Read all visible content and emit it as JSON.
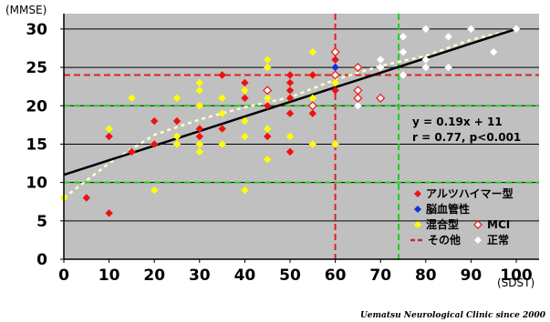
{
  "chart_data": {
    "type": "scatter",
    "ylabel": "(MMSE)",
    "xlabel": "(SDST)",
    "xlim": [
      0,
      100
    ],
    "ylim": [
      0,
      32
    ],
    "x_ticks": [
      0,
      10,
      20,
      30,
      40,
      50,
      60,
      70,
      80,
      90,
      100
    ],
    "y_ticks": [
      0,
      5,
      10,
      15,
      20,
      25,
      30
    ],
    "grid": "horizontal",
    "background": "#c0c0c0",
    "regression_line": {
      "slope": 0.19,
      "intercept": 11,
      "color": "#000000"
    },
    "trend_curve": [
      [
        0,
        8
      ],
      [
        10,
        12.5
      ],
      [
        20,
        16.2
      ],
      [
        30,
        18.2
      ],
      [
        40,
        19.8
      ],
      [
        50,
        21.1
      ],
      [
        60,
        23.4
      ],
      [
        70,
        25.2
      ],
      [
        80,
        26.5
      ],
      [
        90,
        28.6
      ],
      [
        100,
        30
      ]
    ],
    "trend_curve_color": "#ffffcc",
    "annotation_lines": [
      "y = 0.19x + 11",
      "r = 0.77, p<0.001"
    ],
    "reference_lines": [
      {
        "orientation": "vertical",
        "value": 60,
        "color": "#e02020"
      },
      {
        "orientation": "horizontal",
        "value": 24,
        "color": "#e02020"
      },
      {
        "orientation": "vertical",
        "value": 74,
        "color": "#22cc22"
      },
      {
        "orientation": "horizontal",
        "value": 20,
        "color": "#22cc22"
      },
      {
        "orientation": "horizontal",
        "value": 10,
        "color": "#22cc22"
      }
    ],
    "series": [
      {
        "name": "アルツハイマー型",
        "color": "#ee1111",
        "marker": "diamond-filled",
        "points": [
          [
            5,
            8
          ],
          [
            10,
            6
          ],
          [
            10,
            16
          ],
          [
            15,
            14
          ],
          [
            20,
            18
          ],
          [
            20,
            15
          ],
          [
            25,
            18
          ],
          [
            30,
            16
          ],
          [
            30,
            17
          ],
          [
            35,
            24
          ],
          [
            35,
            17
          ],
          [
            40,
            23
          ],
          [
            40,
            21
          ],
          [
            45,
            16
          ],
          [
            45,
            20
          ],
          [
            50,
            24
          ],
          [
            50,
            23
          ],
          [
            50,
            22
          ],
          [
            50,
            21
          ],
          [
            50,
            19
          ],
          [
            50,
            14
          ],
          [
            55,
            24
          ],
          [
            55,
            19
          ],
          [
            60,
            26
          ],
          [
            60,
            24
          ],
          [
            60,
            22
          ]
        ]
      },
      {
        "name": "脳血管性",
        "color": "#1030e0",
        "marker": "diamond-filled",
        "points": [
          [
            60,
            25
          ]
        ]
      },
      {
        "name": "混合型",
        "color": "#ffff00",
        "marker": "diamond-filled",
        "points": [
          [
            0,
            8
          ],
          [
            10,
            17
          ],
          [
            15,
            14
          ],
          [
            15,
            21
          ],
          [
            20,
            15
          ],
          [
            20,
            9
          ],
          [
            25,
            16
          ],
          [
            25,
            21
          ],
          [
            25,
            15
          ],
          [
            30,
            23
          ],
          [
            30,
            22
          ],
          [
            30,
            20
          ],
          [
            30,
            16
          ],
          [
            30,
            15
          ],
          [
            30,
            14
          ],
          [
            35,
            21
          ],
          [
            35,
            19
          ],
          [
            35,
            15
          ],
          [
            40,
            22
          ],
          [
            40,
            18
          ],
          [
            40,
            16
          ],
          [
            40,
            9
          ],
          [
            45,
            26
          ],
          [
            45,
            25
          ],
          [
            45,
            21
          ],
          [
            45,
            17
          ],
          [
            45,
            13
          ],
          [
            50,
            23
          ],
          [
            50,
            16
          ],
          [
            55,
            27
          ],
          [
            55,
            24
          ],
          [
            55,
            21
          ],
          [
            55,
            20
          ],
          [
            55,
            15
          ],
          [
            60,
            15
          ],
          [
            60,
            23
          ]
        ]
      },
      {
        "name": "MCI",
        "color": "#ee1111",
        "marker": "diamond-open",
        "points": [
          [
            45,
            22
          ],
          [
            55,
            20
          ],
          [
            60,
            27
          ],
          [
            60,
            24
          ],
          [
            65,
            25
          ],
          [
            65,
            22
          ],
          [
            65,
            21
          ],
          [
            70,
            21
          ]
        ]
      },
      {
        "name": "その他",
        "color": "#e02020",
        "marker": "dashed-line",
        "points": []
      },
      {
        "name": "正常",
        "color": "#ffffff",
        "marker": "diamond-filled",
        "points": [
          [
            75,
            29
          ],
          [
            75,
            27
          ],
          [
            75,
            24
          ],
          [
            70,
            26
          ],
          [
            70,
            25
          ],
          [
            80,
            30
          ],
          [
            80,
            26
          ],
          [
            80,
            25
          ],
          [
            85,
            29
          ],
          [
            85,
            25
          ],
          [
            90,
            30
          ],
          [
            95,
            27
          ],
          [
            100,
            30
          ],
          [
            65,
            20
          ]
        ]
      }
    ]
  },
  "credit": "Uematsu Neurological Clinic since 2000"
}
